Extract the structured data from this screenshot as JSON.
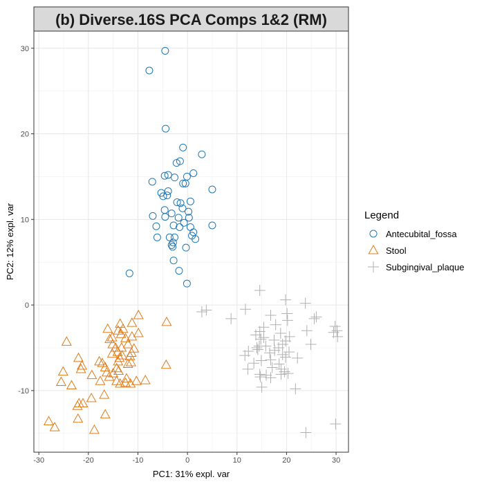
{
  "chart_data": {
    "type": "scatter",
    "title": "(b) Diverse.16S PCA Comps 1&2 (RM)",
    "xlabel": "PC1: 31% expl. var",
    "ylabel": "PC2: 12% expl. var",
    "xlim": [
      -31,
      32.5
    ],
    "ylim": [
      -17.2,
      32
    ],
    "xticks": [
      -30,
      -20,
      -10,
      0,
      10,
      20,
      30
    ],
    "yticks": [
      -10,
      0,
      10,
      20,
      30
    ],
    "grid": true,
    "legend": {
      "title": "Legend",
      "position": "right"
    },
    "series": [
      {
        "name": "Antecubital_fossa",
        "marker": "circle",
        "color": "#1f78b4",
        "points": [
          [
            -4.5,
            29.7
          ],
          [
            -7.7,
            27.4
          ],
          [
            -4.4,
            20.6
          ],
          [
            -0.9,
            18.4
          ],
          [
            2.9,
            17.6
          ],
          [
            -1.5,
            16.8
          ],
          [
            -2.2,
            16.6
          ],
          [
            -3.9,
            15.2
          ],
          [
            -4.6,
            15.1
          ],
          [
            1.2,
            15.4
          ],
          [
            -0.1,
            15.0
          ],
          [
            -2.6,
            14.9
          ],
          [
            -7.1,
            14.4
          ],
          [
            -0.9,
            14.2
          ],
          [
            -0.4,
            14.2
          ],
          [
            5.0,
            13.5
          ],
          [
            -3.9,
            13.3
          ],
          [
            -5.3,
            13.1
          ],
          [
            -4.9,
            12.7
          ],
          [
            -4.1,
            12.8
          ],
          [
            0.6,
            12.1
          ],
          [
            -2.1,
            12.0
          ],
          [
            -1.4,
            11.9
          ],
          [
            -4.6,
            11.1
          ],
          [
            -1.0,
            11.3
          ],
          [
            0.2,
            10.9
          ],
          [
            -3.2,
            10.7
          ],
          [
            -7.0,
            10.4
          ],
          [
            -4.5,
            10.3
          ],
          [
            -1.8,
            10.2
          ],
          [
            0.3,
            10.2
          ],
          [
            -0.7,
            9.6
          ],
          [
            -2.8,
            9.3
          ],
          [
            0.6,
            9.1
          ],
          [
            -1.6,
            9.1
          ],
          [
            -6.3,
            9.2
          ],
          [
            5.0,
            9.3
          ],
          [
            1.2,
            8.5
          ],
          [
            0.9,
            8.1
          ],
          [
            1.6,
            7.7
          ],
          [
            -3.6,
            7.9
          ],
          [
            -6.1,
            7.9
          ],
          [
            -2.6,
            7.9
          ],
          [
            -3.2,
            7.0
          ],
          [
            -2.9,
            7.3
          ],
          [
            -3.0,
            6.8
          ],
          [
            -0.3,
            6.7
          ],
          [
            -2.8,
            5.2
          ],
          [
            -1.7,
            4.0
          ],
          [
            -11.7,
            3.7
          ],
          [
            -0.1,
            2.5
          ]
        ]
      },
      {
        "name": "Stool",
        "marker": "triangle",
        "color": "#e07b1a",
        "points": [
          [
            -9.9,
            -1.2
          ],
          [
            -4.2,
            -2.0
          ],
          [
            -13.6,
            -2.2
          ],
          [
            -11.2,
            -2.1
          ],
          [
            -16.1,
            -2.8
          ],
          [
            -15.2,
            -3.8
          ],
          [
            -13.0,
            -2.8
          ],
          [
            -14.0,
            -3.0
          ],
          [
            -9.9,
            -3.3
          ],
          [
            -13.4,
            -3.4
          ],
          [
            -11.2,
            -3.7
          ],
          [
            -12.5,
            -3.9
          ],
          [
            -15.7,
            -4.0
          ],
          [
            -24.4,
            -4.3
          ],
          [
            -15.1,
            -4.6
          ],
          [
            -12.0,
            -4.6
          ],
          [
            -13.3,
            -5.0
          ],
          [
            -14.5,
            -5.0
          ],
          [
            -10.8,
            -5.1
          ],
          [
            -14.1,
            -5.5
          ],
          [
            -11.3,
            -5.6
          ],
          [
            -15.2,
            -5.7
          ],
          [
            -13.2,
            -5.9
          ],
          [
            -11.6,
            -6.0
          ],
          [
            -13.7,
            -6.2
          ],
          [
            -22.0,
            -6.2
          ],
          [
            -14.0,
            -6.6
          ],
          [
            -11.4,
            -6.7
          ],
          [
            -17.8,
            -6.6
          ],
          [
            -17.2,
            -6.8
          ],
          [
            -12.0,
            -6.9
          ],
          [
            -4.3,
            -7.0
          ],
          [
            -21.3,
            -7.1
          ],
          [
            -14.3,
            -7.4
          ],
          [
            -16.6,
            -7.3
          ],
          [
            -13.9,
            -7.7
          ],
          [
            -21.5,
            -7.5
          ],
          [
            -25.1,
            -7.8
          ],
          [
            -15.0,
            -8.0
          ],
          [
            -16.3,
            -7.9
          ],
          [
            -15.8,
            -8.4
          ],
          [
            -19.3,
            -8.2
          ],
          [
            -12.3,
            -8.6
          ],
          [
            -8.5,
            -8.8
          ],
          [
            -17.6,
            -8.9
          ],
          [
            -14.3,
            -8.9
          ],
          [
            -10.3,
            -8.9
          ],
          [
            -12.5,
            -9.1
          ],
          [
            -13.6,
            -9.2
          ],
          [
            -11.5,
            -9.2
          ],
          [
            -25.5,
            -9.0
          ],
          [
            -23.4,
            -9.4
          ],
          [
            -16.8,
            -10.5
          ],
          [
            -19.4,
            -10.9
          ],
          [
            -21.9,
            -11.5
          ],
          [
            -21.1,
            -11.5
          ],
          [
            -22.2,
            -11.8
          ],
          [
            -16.6,
            -12.8
          ],
          [
            -22.1,
            -13.3
          ],
          [
            -28.0,
            -13.6
          ],
          [
            -26.8,
            -14.3
          ],
          [
            -18.8,
            -14.6
          ]
        ]
      },
      {
        "name": "Subgingival_plaque",
        "marker": "cross",
        "color": "#b0b0b0",
        "points": [
          [
            14.6,
            1.7
          ],
          [
            19.8,
            0.6
          ],
          [
            23.8,
            0.2
          ],
          [
            11.7,
            -0.5
          ],
          [
            3.8,
            -0.6
          ],
          [
            2.9,
            -0.8
          ],
          [
            20.1,
            -1.0
          ],
          [
            26.0,
            -1.4
          ],
          [
            25.6,
            -1.6
          ],
          [
            16.8,
            -1.2
          ],
          [
            8.8,
            -1.6
          ],
          [
            20.2,
            -1.8
          ],
          [
            17.8,
            -2.3
          ],
          [
            15.4,
            -2.6
          ],
          [
            14.6,
            -3.1
          ],
          [
            29.8,
            -2.5
          ],
          [
            13.8,
            -3.5
          ],
          [
            18.8,
            -3.3
          ],
          [
            24.1,
            -3.0
          ],
          [
            30.2,
            -3.0
          ],
          [
            29.5,
            -3.2
          ],
          [
            30.3,
            -3.7
          ],
          [
            20.6,
            -3.7
          ],
          [
            15.4,
            -3.8
          ],
          [
            14.8,
            -4.0
          ],
          [
            17.5,
            -4.1
          ],
          [
            19.8,
            -4.2
          ],
          [
            24.9,
            -4.6
          ],
          [
            19.2,
            -4.6
          ],
          [
            14.5,
            -4.8
          ],
          [
            15.8,
            -4.8
          ],
          [
            14.0,
            -5.0
          ],
          [
            17.6,
            -5.3
          ],
          [
            18.4,
            -5.0
          ],
          [
            16.6,
            -5.6
          ],
          [
            14.2,
            -5.2
          ],
          [
            12.3,
            -5.4
          ],
          [
            20.5,
            -5.5
          ],
          [
            11.6,
            -5.9
          ],
          [
            19.2,
            -5.8
          ],
          [
            19.8,
            -6.1
          ],
          [
            22.2,
            -6.2
          ],
          [
            16.8,
            -6.4
          ],
          [
            14.9,
            -6.5
          ],
          [
            13.4,
            -6.8
          ],
          [
            18.5,
            -6.9
          ],
          [
            17.1,
            -7.3
          ],
          [
            12.2,
            -7.5
          ],
          [
            18.9,
            -7.5
          ],
          [
            19.6,
            -7.8
          ],
          [
            18.9,
            -8.1
          ],
          [
            20.3,
            -8.0
          ],
          [
            14.6,
            -8.1
          ],
          [
            15.9,
            -8.2
          ],
          [
            14.7,
            -8.4
          ],
          [
            16.8,
            -8.5
          ],
          [
            15.0,
            -9.6
          ],
          [
            21.8,
            -9.8
          ],
          [
            29.9,
            -13.9
          ],
          [
            23.9,
            -14.9
          ]
        ]
      }
    ]
  }
}
